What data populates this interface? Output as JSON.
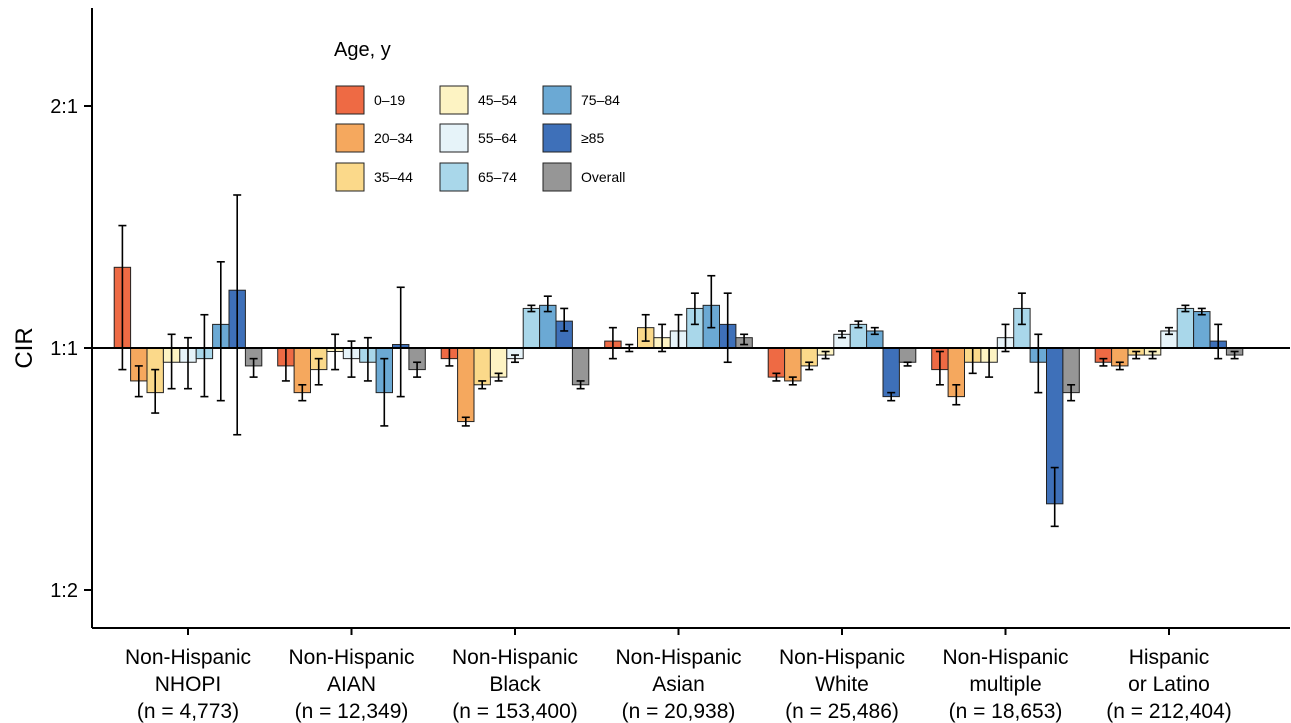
{
  "chart_data": {
    "type": "bar",
    "ylabel": "CIR",
    "y_scale": "log2",
    "ylim": [
      0.46,
      2.5
    ],
    "baseline": 1,
    "y_ticks": [
      {
        "value": 2,
        "label": "2:1"
      },
      {
        "value": 1,
        "label": "1:1"
      },
      {
        "value": 0.5,
        "label": "1:2"
      }
    ],
    "legend": {
      "title": "Age, y",
      "placement": "top-left",
      "entries": [
        {
          "name": "0–19",
          "color": "#ee6a44"
        },
        {
          "name": "20–34",
          "color": "#f5a85e"
        },
        {
          "name": "35–44",
          "color": "#fbd98a"
        },
        {
          "name": "45–54",
          "color": "#fdf3c3"
        },
        {
          "name": "55–64",
          "color": "#e6f3f9"
        },
        {
          "name": "65–74",
          "color": "#a9d7ea"
        },
        {
          "name": "75–84",
          "color": "#6ba9d4"
        },
        {
          "name": "≥85",
          "color": "#3e70b9"
        },
        {
          "name": "Overall",
          "color": "#969696"
        }
      ]
    },
    "categories": [
      {
        "line1": "Non-Hispanic",
        "line2": "NHOPI",
        "line3": "(n = 4,773)"
      },
      {
        "line1": "Non-Hispanic",
        "line2": "AIAN",
        "line3": "(n = 12,349)"
      },
      {
        "line1": "Non-Hispanic",
        "line2": "Black",
        "line3": "(n = 153,400)"
      },
      {
        "line1": "Non-Hispanic",
        "line2": "Asian",
        "line3": "(n = 20,938)"
      },
      {
        "line1": "Non-Hispanic",
        "line2": "White",
        "line3": "(n = 25,486)"
      },
      {
        "line1": "Non-Hispanic",
        "line2": "multiple",
        "line3": "(n = 18,653)"
      },
      {
        "line1": "Hispanic",
        "line2": "or Latino",
        "line3": "(n = 212,404)"
      }
    ],
    "series": [
      {
        "name": "0–19",
        "values": [
          1.26,
          0.95,
          0.97,
          1.02,
          0.92,
          0.94,
          0.96
        ],
        "lower": [
          0.94,
          0.91,
          0.95,
          0.97,
          0.91,
          0.9,
          0.95
        ],
        "upper": [
          1.42,
          1.0,
          1.0,
          1.06,
          0.93,
          0.99,
          0.97
        ]
      },
      {
        "name": "20–34",
        "values": [
          0.91,
          0.88,
          0.81,
          1.0,
          0.91,
          0.87,
          0.95
        ],
        "lower": [
          0.87,
          0.86,
          0.8,
          0.99,
          0.9,
          0.85,
          0.94
        ],
        "upper": [
          0.95,
          0.9,
          0.82,
          1.01,
          0.92,
          0.9,
          0.96
        ]
      },
      {
        "name": "35–44",
        "values": [
          0.88,
          0.94,
          0.9,
          1.06,
          0.95,
          0.96,
          0.98
        ],
        "lower": [
          0.83,
          0.9,
          0.89,
          1.02,
          0.94,
          0.93,
          0.97
        ],
        "upper": [
          0.94,
          0.97,
          0.91,
          1.1,
          0.96,
          1.0,
          0.99
        ]
      },
      {
        "name": "45–54",
        "values": [
          0.96,
          0.99,
          0.92,
          1.03,
          0.98,
          0.96,
          0.98
        ],
        "lower": [
          0.89,
          0.94,
          0.91,
          0.99,
          0.97,
          0.92,
          0.97
        ],
        "upper": [
          1.04,
          1.04,
          0.93,
          1.07,
          0.99,
          1.0,
          0.99
        ]
      },
      {
        "name": "55–64",
        "values": [
          0.96,
          0.97,
          0.97,
          1.05,
          1.04,
          1.03,
          1.05
        ],
        "lower": [
          0.89,
          0.92,
          0.96,
          1.0,
          1.03,
          0.99,
          1.04
        ],
        "upper": [
          1.03,
          1.02,
          0.98,
          1.1,
          1.05,
          1.07,
          1.06
        ]
      },
      {
        "name": "65–74",
        "values": [
          0.97,
          0.96,
          1.12,
          1.12,
          1.07,
          1.12,
          1.12
        ],
        "lower": [
          0.87,
          0.91,
          1.11,
          1.07,
          1.06,
          1.07,
          1.11
        ],
        "upper": [
          1.1,
          1.03,
          1.13,
          1.17,
          1.08,
          1.17,
          1.13
        ]
      },
      {
        "name": "75–84",
        "values": [
          1.07,
          0.88,
          1.13,
          1.13,
          1.05,
          0.96,
          1.11
        ],
        "lower": [
          0.86,
          0.8,
          1.11,
          1.06,
          1.04,
          0.88,
          1.1
        ],
        "upper": [
          1.28,
          0.97,
          1.16,
          1.23,
          1.06,
          1.04,
          1.12
        ]
      },
      {
        "name": "≥85",
        "values": [
          1.18,
          1.01,
          1.08,
          1.07,
          0.87,
          0.64,
          1.02
        ],
        "lower": [
          0.78,
          0.87,
          1.05,
          0.96,
          0.86,
          0.6,
          0.97
        ],
        "upper": [
          1.55,
          1.19,
          1.12,
          1.17,
          0.88,
          0.71,
          1.07
        ]
      },
      {
        "name": "Overall",
        "values": [
          0.95,
          0.94,
          0.9,
          1.03,
          0.96,
          0.88,
          0.98
        ],
        "lower": [
          0.92,
          0.92,
          0.89,
          1.01,
          0.95,
          0.86,
          0.97
        ],
        "upper": [
          0.97,
          0.96,
          0.91,
          1.04,
          0.96,
          0.9,
          0.99
        ]
      }
    ]
  }
}
